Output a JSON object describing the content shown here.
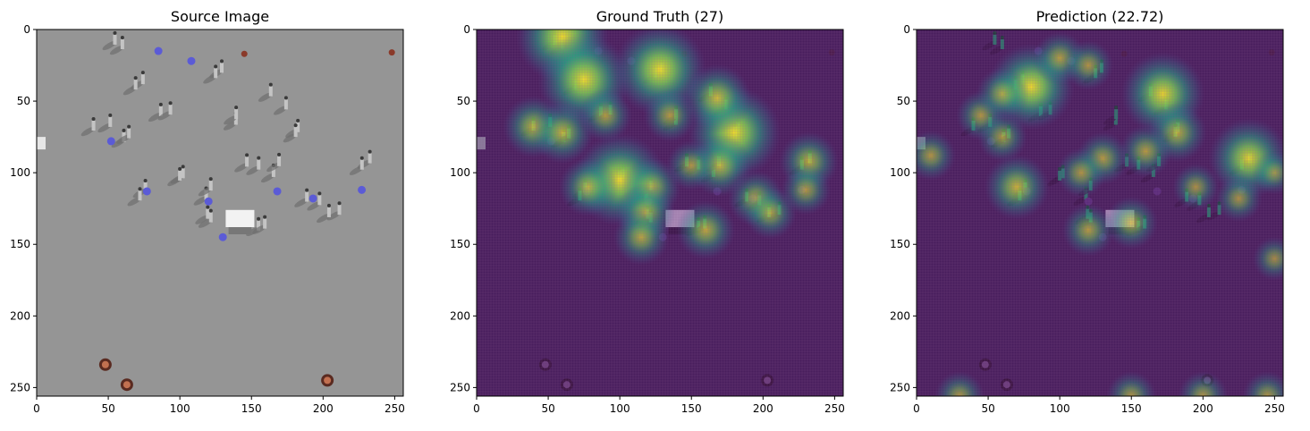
{
  "chart_data": [
    {
      "type": "heatmap",
      "title": "Source Image",
      "content": "source",
      "xlim": [
        0,
        256
      ],
      "ylim": [
        256,
        0
      ],
      "xticks": [
        0,
        50,
        100,
        150,
        200,
        250
      ],
      "yticks": [
        0,
        50,
        100,
        150,
        200,
        250
      ],
      "xlabel": "",
      "ylabel": "",
      "grid": false
    },
    {
      "type": "heatmap",
      "title": "Ground Truth (27)",
      "content": "density",
      "xlim": [
        0,
        256
      ],
      "ylim": [
        256,
        0
      ],
      "xticks": [
        0,
        50,
        100,
        150,
        200,
        250
      ],
      "yticks": [
        0,
        50,
        100,
        150,
        200,
        250
      ],
      "xlabel": "",
      "ylabel": "",
      "grid": false,
      "hotspots": [
        [
          60,
          5,
          1.0
        ],
        [
          75,
          35,
          1.0
        ],
        [
          128,
          28,
          1.0
        ],
        [
          100,
          105,
          1.0
        ],
        [
          180,
          72,
          1.0
        ],
        [
          168,
          48,
          0.6
        ],
        [
          40,
          68,
          0.5
        ],
        [
          60,
          72,
          0.5
        ],
        [
          135,
          60,
          0.35
        ],
        [
          170,
          95,
          0.5
        ],
        [
          232,
          92,
          0.45
        ],
        [
          78,
          110,
          0.45
        ],
        [
          122,
          110,
          0.45
        ],
        [
          118,
          128,
          0.45
        ],
        [
          160,
          140,
          0.45
        ],
        [
          195,
          118,
          0.4
        ],
        [
          205,
          128,
          0.35
        ],
        [
          230,
          112,
          0.3
        ],
        [
          115,
          145,
          0.4
        ],
        [
          150,
          95,
          0.3
        ],
        [
          90,
          60,
          0.35
        ]
      ]
    },
    {
      "type": "heatmap",
      "title": "Prediction (22.72)",
      "content": "density",
      "xlim": [
        0,
        256
      ],
      "ylim": [
        256,
        0
      ],
      "xticks": [
        0,
        50,
        100,
        150,
        200,
        250
      ],
      "yticks": [
        0,
        50,
        100,
        150,
        200,
        250
      ],
      "xlabel": "",
      "ylabel": "",
      "grid": false,
      "hotspots": [
        [
          80,
          40,
          0.9
        ],
        [
          172,
          45,
          0.85
        ],
        [
          232,
          90,
          0.8
        ],
        [
          70,
          110,
          0.55
        ],
        [
          182,
          72,
          0.45
        ],
        [
          150,
          135,
          0.35
        ],
        [
          100,
          20,
          0.35
        ],
        [
          120,
          25,
          0.3
        ],
        [
          160,
          85,
          0.35
        ],
        [
          130,
          90,
          0.35
        ],
        [
          45,
          60,
          0.3
        ],
        [
          60,
          75,
          0.3
        ],
        [
          195,
          110,
          0.25
        ],
        [
          225,
          118,
          0.25
        ],
        [
          120,
          140,
          0.35
        ],
        [
          10,
          88,
          0.3
        ],
        [
          250,
          160,
          0.2
        ],
        [
          30,
          256,
          0.3
        ],
        [
          150,
          256,
          0.3
        ],
        [
          200,
          256,
          0.3
        ],
        [
          245,
          256,
          0.3
        ],
        [
          250,
          100,
          0.2
        ],
        [
          60,
          45,
          0.35
        ],
        [
          115,
          100,
          0.3
        ]
      ]
    }
  ]
}
